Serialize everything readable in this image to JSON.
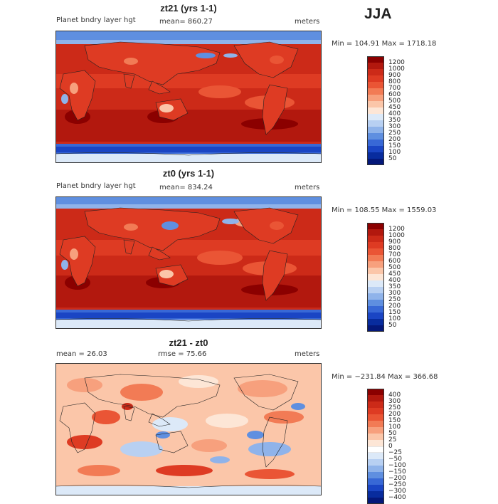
{
  "season": "JJA",
  "panels": [
    {
      "id": "zt21",
      "title": "zt21 (yrs 1-1)",
      "left_label": "Planet bndry layer hgt",
      "center_label": "mean=  860.27",
      "right_label": "meters",
      "minmax": "Min = 104.91 Max = 1718.18",
      "kind": "abs",
      "levels": [
        "1200",
        "1000",
        "900",
        "800",
        "700",
        "600",
        "500",
        "450",
        "400",
        "350",
        "300",
        "250",
        "200",
        "150",
        "100",
        "50"
      ],
      "colors": [
        "#8b0000",
        "#b2180e",
        "#cc2a18",
        "#de3b23",
        "#ea5535",
        "#f27b55",
        "#f7a07d",
        "#fbc6a9",
        "#fde6d6",
        "#dce9f8",
        "#b8d0f2",
        "#8fb3ea",
        "#5f8fe0",
        "#3868d6",
        "#1a45c4",
        "#082c9e",
        "#04187a"
      ]
    },
    {
      "id": "zt0",
      "title": "zt0 (yrs 1-1)",
      "left_label": "Planet bndry layer hgt",
      "center_label": "mean=  834.24",
      "right_label": "meters",
      "minmax": "Min = 108.55 Max = 1559.03",
      "kind": "abs",
      "levels": [
        "1200",
        "1000",
        "900",
        "800",
        "700",
        "600",
        "500",
        "450",
        "400",
        "350",
        "300",
        "250",
        "200",
        "150",
        "100",
        "50"
      ],
      "colors": [
        "#8b0000",
        "#b2180e",
        "#cc2a18",
        "#de3b23",
        "#ea5535",
        "#f27b55",
        "#f7a07d",
        "#fbc6a9",
        "#fde6d6",
        "#dce9f8",
        "#b8d0f2",
        "#8fb3ea",
        "#5f8fe0",
        "#3868d6",
        "#1a45c4",
        "#082c9e",
        "#04187a"
      ]
    },
    {
      "id": "diff",
      "title": "zt21 - zt0",
      "left_label": "mean =   26.03",
      "center_label": "rmse =   75.66",
      "right_label": "meters",
      "minmax": "Min = −231.84 Max = 366.68",
      "kind": "diff",
      "levels": [
        "400",
        "300",
        "250",
        "200",
        "150",
        "100",
        "50",
        "25",
        "0",
        "−25",
        "−50",
        "−100",
        "−150",
        "−200",
        "−250",
        "−300",
        "−400"
      ],
      "colors": [
        "#8b0000",
        "#b2180e",
        "#cc2a18",
        "#de3b23",
        "#ea5535",
        "#f27b55",
        "#f7a07d",
        "#fbc6a9",
        "#fde6d6",
        "#ffffff",
        "#dce9f8",
        "#b8d0f2",
        "#8fb3ea",
        "#5f8fe0",
        "#3868d6",
        "#1a45c4",
        "#082c9e",
        "#04187a"
      ]
    }
  ]
}
